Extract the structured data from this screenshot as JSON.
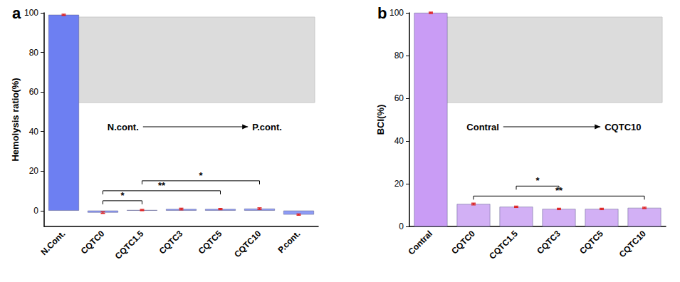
{
  "chart_data": [
    {
      "type": "bar",
      "title": "a",
      "y_label": "Hemolysis ratio(%)",
      "categories": [
        "N.Cont.",
        "CQTC0",
        "CQTC1.5",
        "CQTC3",
        "CQTC5",
        "CQTC10",
        "P.cont."
      ],
      "values": [
        99,
        -1,
        0.3,
        0.8,
        0.8,
        1.0,
        -2
      ],
      "errors": [
        0.3,
        0.4,
        0.3,
        0.4,
        0.3,
        0.4,
        0.3
      ],
      "colors": [
        "#6d7ff2",
        "#8e9cf5",
        "#8e9cf5",
        "#8e9cf5",
        "#8e9cf5",
        "#8e9cf5",
        "#8e9cf5"
      ],
      "ylim": [
        -8,
        100
      ],
      "yticks": [
        0,
        20,
        40,
        60,
        80,
        100
      ],
      "grid": false,
      "significance": [
        {
          "from": "CQTC0",
          "to": "CQTC1.5",
          "label": "*"
        },
        {
          "from": "CQTC0",
          "to": "CQTC5",
          "label": "**"
        },
        {
          "from": "CQTC1.5",
          "to": "CQTC10",
          "label": "*"
        }
      ],
      "annotation": {
        "start": "N.cont.",
        "end": "P.cont."
      }
    },
    {
      "type": "bar",
      "title": "b",
      "y_label": "BCI(%)",
      "categories": [
        "Contral",
        "CQTC0",
        "CQTC1.5",
        "CQTC3",
        "CQTC5",
        "CQTC10"
      ],
      "values": [
        100,
        10.5,
        9.2,
        8.2,
        8.2,
        8.7
      ],
      "errors": [
        0.3,
        0.4,
        0.3,
        0.3,
        0.3,
        0.3
      ],
      "colors": [
        "#c99cf5",
        "#d2b0f5",
        "#d2b0f5",
        "#d2b0f5",
        "#d2b0f5",
        "#d2b0f5"
      ],
      "ylim": [
        0,
        100
      ],
      "yticks": [
        0,
        20,
        40,
        60,
        80,
        100
      ],
      "grid": false,
      "significance": [
        {
          "from": "CQTC0",
          "to": "CQTC10",
          "label": "**"
        },
        {
          "from": "CQTC1.5",
          "to": "CQTC3",
          "label": "*"
        }
      ],
      "annotation": {
        "start": "Contral",
        "end": "CQTC10"
      }
    }
  ]
}
